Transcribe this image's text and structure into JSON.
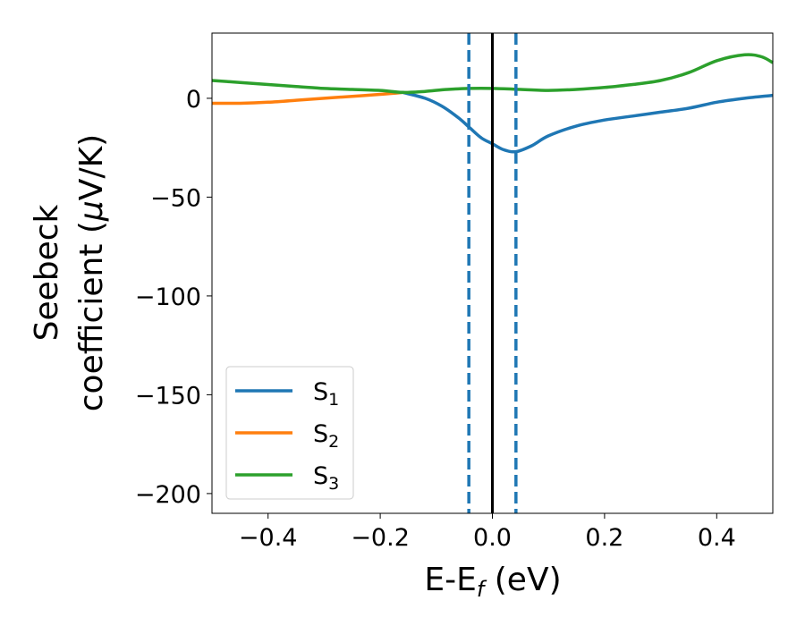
{
  "chart_data": {
    "type": "line",
    "xlabel": {
      "main": "E-E",
      "sub": "f",
      "unit": " (eV)"
    },
    "ylabel": {
      "line1": "Seebeck",
      "line2": "coefficient  (",
      "mu": "μ",
      "unit": "V/K)"
    },
    "xlim": [
      -0.5,
      0.5
    ],
    "ylim": [
      -210,
      33
    ],
    "x_ticks": [
      -0.4,
      -0.2,
      0.0,
      0.2,
      0.4
    ],
    "x_tick_labels": [
      "−0.4",
      "−0.2",
      "0.0",
      "0.2",
      "0.4"
    ],
    "y_ticks": [
      0,
      -50,
      -100,
      -150,
      -200
    ],
    "y_tick_labels": [
      "0",
      "−50",
      "−100",
      "−150",
      "−200"
    ],
    "grid": false,
    "legend_position": "lower-left",
    "vlines": [
      {
        "x": -0.042,
        "style": "dashed",
        "color": "#1f77b4"
      },
      {
        "x": 0.042,
        "style": "dashed",
        "color": "#1f77b4"
      },
      {
        "x": 0.0,
        "style": "solid",
        "color": "#000000"
      }
    ],
    "series": [
      {
        "name": "S",
        "sub": "1",
        "color": "#1f77b4",
        "x": [
          -0.16,
          -0.12,
          -0.09,
          -0.06,
          -0.04,
          -0.02,
          0.0,
          0.02,
          0.042,
          0.07,
          0.1,
          0.15,
          0.2,
          0.25,
          0.3,
          0.35,
          0.4,
          0.45,
          0.5
        ],
        "y": [
          3,
          0,
          -4,
          -10,
          -15,
          -20,
          -23,
          -26,
          -27,
          -24,
          -19,
          -14,
          -11,
          -9,
          -7,
          -5,
          -2,
          0,
          1.5
        ]
      },
      {
        "name": "S",
        "sub": "2",
        "color": "#ff7f0e",
        "x": [
          -0.5,
          -0.45,
          -0.4,
          -0.35,
          -0.3,
          -0.25,
          -0.2,
          -0.16
        ],
        "y": [
          -2.5,
          -2.5,
          -2,
          -1,
          0,
          1,
          2,
          3
        ]
      },
      {
        "name": "S",
        "sub": "3",
        "color": "#2ca02c",
        "x": [
          -0.5,
          -0.45,
          -0.4,
          -0.35,
          -0.3,
          -0.25,
          -0.2,
          -0.16,
          -0.12,
          -0.08,
          -0.04,
          0.0,
          0.05,
          0.1,
          0.15,
          0.2,
          0.25,
          0.3,
          0.35,
          0.4,
          0.45,
          0.48,
          0.5
        ],
        "y": [
          9,
          8,
          7,
          6,
          5,
          4.5,
          4,
          3,
          3.5,
          4.5,
          5,
          5,
          4.5,
          4,
          4.5,
          5.5,
          7,
          9,
          13,
          19,
          22,
          21,
          18
        ]
      }
    ]
  }
}
